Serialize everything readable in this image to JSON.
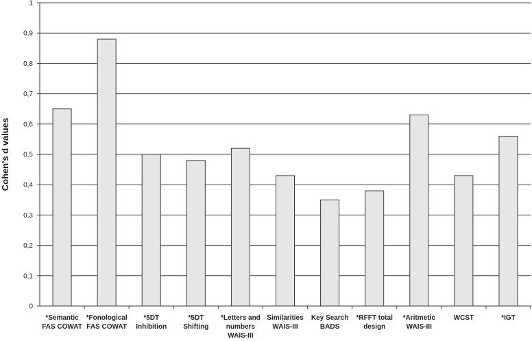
{
  "chart_data": {
    "type": "bar",
    "ylabel": "Cohen's d values",
    "xlabel": "",
    "ylim": [
      0,
      1
    ],
    "yticks": [
      "0",
      "0,1",
      "0,2",
      "0,3",
      "0,4",
      "0,5",
      "0,6",
      "0,7",
      "0,8",
      "0,9",
      "1"
    ],
    "grid": true,
    "categories": [
      [
        "*Semantic",
        "FAS COWAT"
      ],
      [
        "*Fonological",
        "FAS COWAT"
      ],
      [
        "*5DT",
        "Inhibition"
      ],
      [
        "*5DT",
        "Shifting"
      ],
      [
        "*Letters and",
        "numbers",
        "WAIS-III"
      ],
      [
        "Similarities",
        "WAIS-III"
      ],
      [
        "Key Search",
        "BADS"
      ],
      [
        "*RFFT total",
        "design"
      ],
      [
        "*Aritmetic",
        "WAIS-III"
      ],
      [
        "WCST"
      ],
      [
        "*IGT"
      ]
    ],
    "values": [
      0.65,
      0.88,
      0.5,
      0.48,
      0.52,
      0.43,
      0.35,
      0.38,
      0.63,
      0.43,
      0.56
    ],
    "colors": {
      "bar_fill": "#e6e6e6",
      "bar_stroke": "#3a3a3a",
      "grid": "#404040",
      "axis": "#3a3a3a"
    }
  }
}
